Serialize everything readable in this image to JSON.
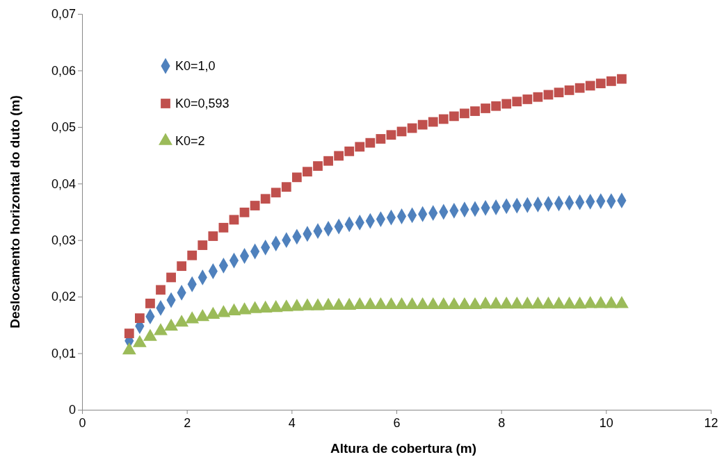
{
  "chart_data": {
    "type": "scatter",
    "xlabel": "Altura de cobertura (m)",
    "ylabel": "Deslocamento horizontal do duto (m)",
    "x": [
      0.9,
      1.1,
      1.3,
      1.5,
      1.7,
      1.9,
      2.1,
      2.3,
      2.5,
      2.7,
      2.9,
      3.1,
      3.3,
      3.5,
      3.7,
      3.9,
      4.1,
      4.3,
      4.5,
      4.7,
      4.9,
      5.1,
      5.3,
      5.5,
      5.7,
      5.9,
      6.1,
      6.3,
      6.5,
      6.7,
      6.9,
      7.1,
      7.3,
      7.5,
      7.7,
      7.9,
      8.1,
      8.3,
      8.5,
      8.7,
      8.9,
      9.1,
      9.3,
      9.5,
      9.7,
      9.9,
      10.1,
      10.3
    ],
    "series": [
      {
        "name": "K0=1,0",
        "color": "#4f81bd",
        "marker": "diamond",
        "values": [
          0.0122,
          0.0148,
          0.0165,
          0.018,
          0.0194,
          0.0207,
          0.0222,
          0.0234,
          0.0245,
          0.0255,
          0.0264,
          0.0272,
          0.028,
          0.0287,
          0.0294,
          0.03,
          0.0306,
          0.0311,
          0.0316,
          0.032,
          0.0324,
          0.0328,
          0.0331,
          0.0334,
          0.0337,
          0.034,
          0.0342,
          0.0344,
          0.0346,
          0.0348,
          0.035,
          0.0352,
          0.0354,
          0.0355,
          0.0357,
          0.0358,
          0.036,
          0.0361,
          0.0362,
          0.0363,
          0.0364,
          0.0365,
          0.0366,
          0.0367,
          0.0368,
          0.0369,
          0.0369,
          0.037
        ]
      },
      {
        "name": "K0=0,593",
        "color": "#c0504d",
        "marker": "square",
        "values": [
          0.0135,
          0.0162,
          0.0188,
          0.0212,
          0.0234,
          0.0254,
          0.0273,
          0.0291,
          0.0307,
          0.0322,
          0.0336,
          0.0349,
          0.0361,
          0.0373,
          0.0384,
          0.0394,
          0.0411,
          0.0421,
          0.0431,
          0.044,
          0.0449,
          0.0457,
          0.0465,
          0.0472,
          0.0479,
          0.0486,
          0.0492,
          0.0498,
          0.0504,
          0.0509,
          0.0514,
          0.0519,
          0.0524,
          0.0528,
          0.0533,
          0.0537,
          0.0541,
          0.0545,
          0.0549,
          0.0553,
          0.0557,
          0.0561,
          0.0565,
          0.0569,
          0.0573,
          0.0577,
          0.0581,
          0.0585
        ]
      },
      {
        "name": "K0=2",
        "color": "#9bbb59",
        "marker": "triangle",
        "values": [
          0.0105,
          0.0118,
          0.0129,
          0.0139,
          0.0147,
          0.0154,
          0.016,
          0.0164,
          0.0168,
          0.0171,
          0.0174,
          0.0176,
          0.0178,
          0.0179,
          0.018,
          0.0181,
          0.0182,
          0.0183,
          0.0183,
          0.0184,
          0.0184,
          0.0184,
          0.0185,
          0.0185,
          0.0185,
          0.0185,
          0.0185,
          0.0185,
          0.0185,
          0.0185,
          0.0185,
          0.0185,
          0.0185,
          0.0185,
          0.0186,
          0.0186,
          0.0186,
          0.0186,
          0.0186,
          0.0186,
          0.0186,
          0.0186,
          0.0186,
          0.0186,
          0.0187,
          0.0187,
          0.0187,
          0.0187
        ]
      }
    ],
    "xlim": [
      0,
      12
    ],
    "xticks": [
      0,
      2,
      4,
      6,
      8,
      10,
      12
    ],
    "ylim": [
      0,
      0.07
    ],
    "yticks": [
      0,
      {
        "value": 0.01,
        "label": "0,01"
      },
      {
        "value": 0.02,
        "label": "0,02"
      },
      {
        "value": 0.03,
        "label": "0,03"
      },
      {
        "value": 0.04,
        "label": "0,04"
      },
      {
        "value": 0.05,
        "label": "0,05"
      },
      {
        "value": 0.06,
        "label": "0,06"
      },
      {
        "value": 0.07,
        "label": "0,07"
      }
    ],
    "grid": false,
    "legend": "top left"
  }
}
